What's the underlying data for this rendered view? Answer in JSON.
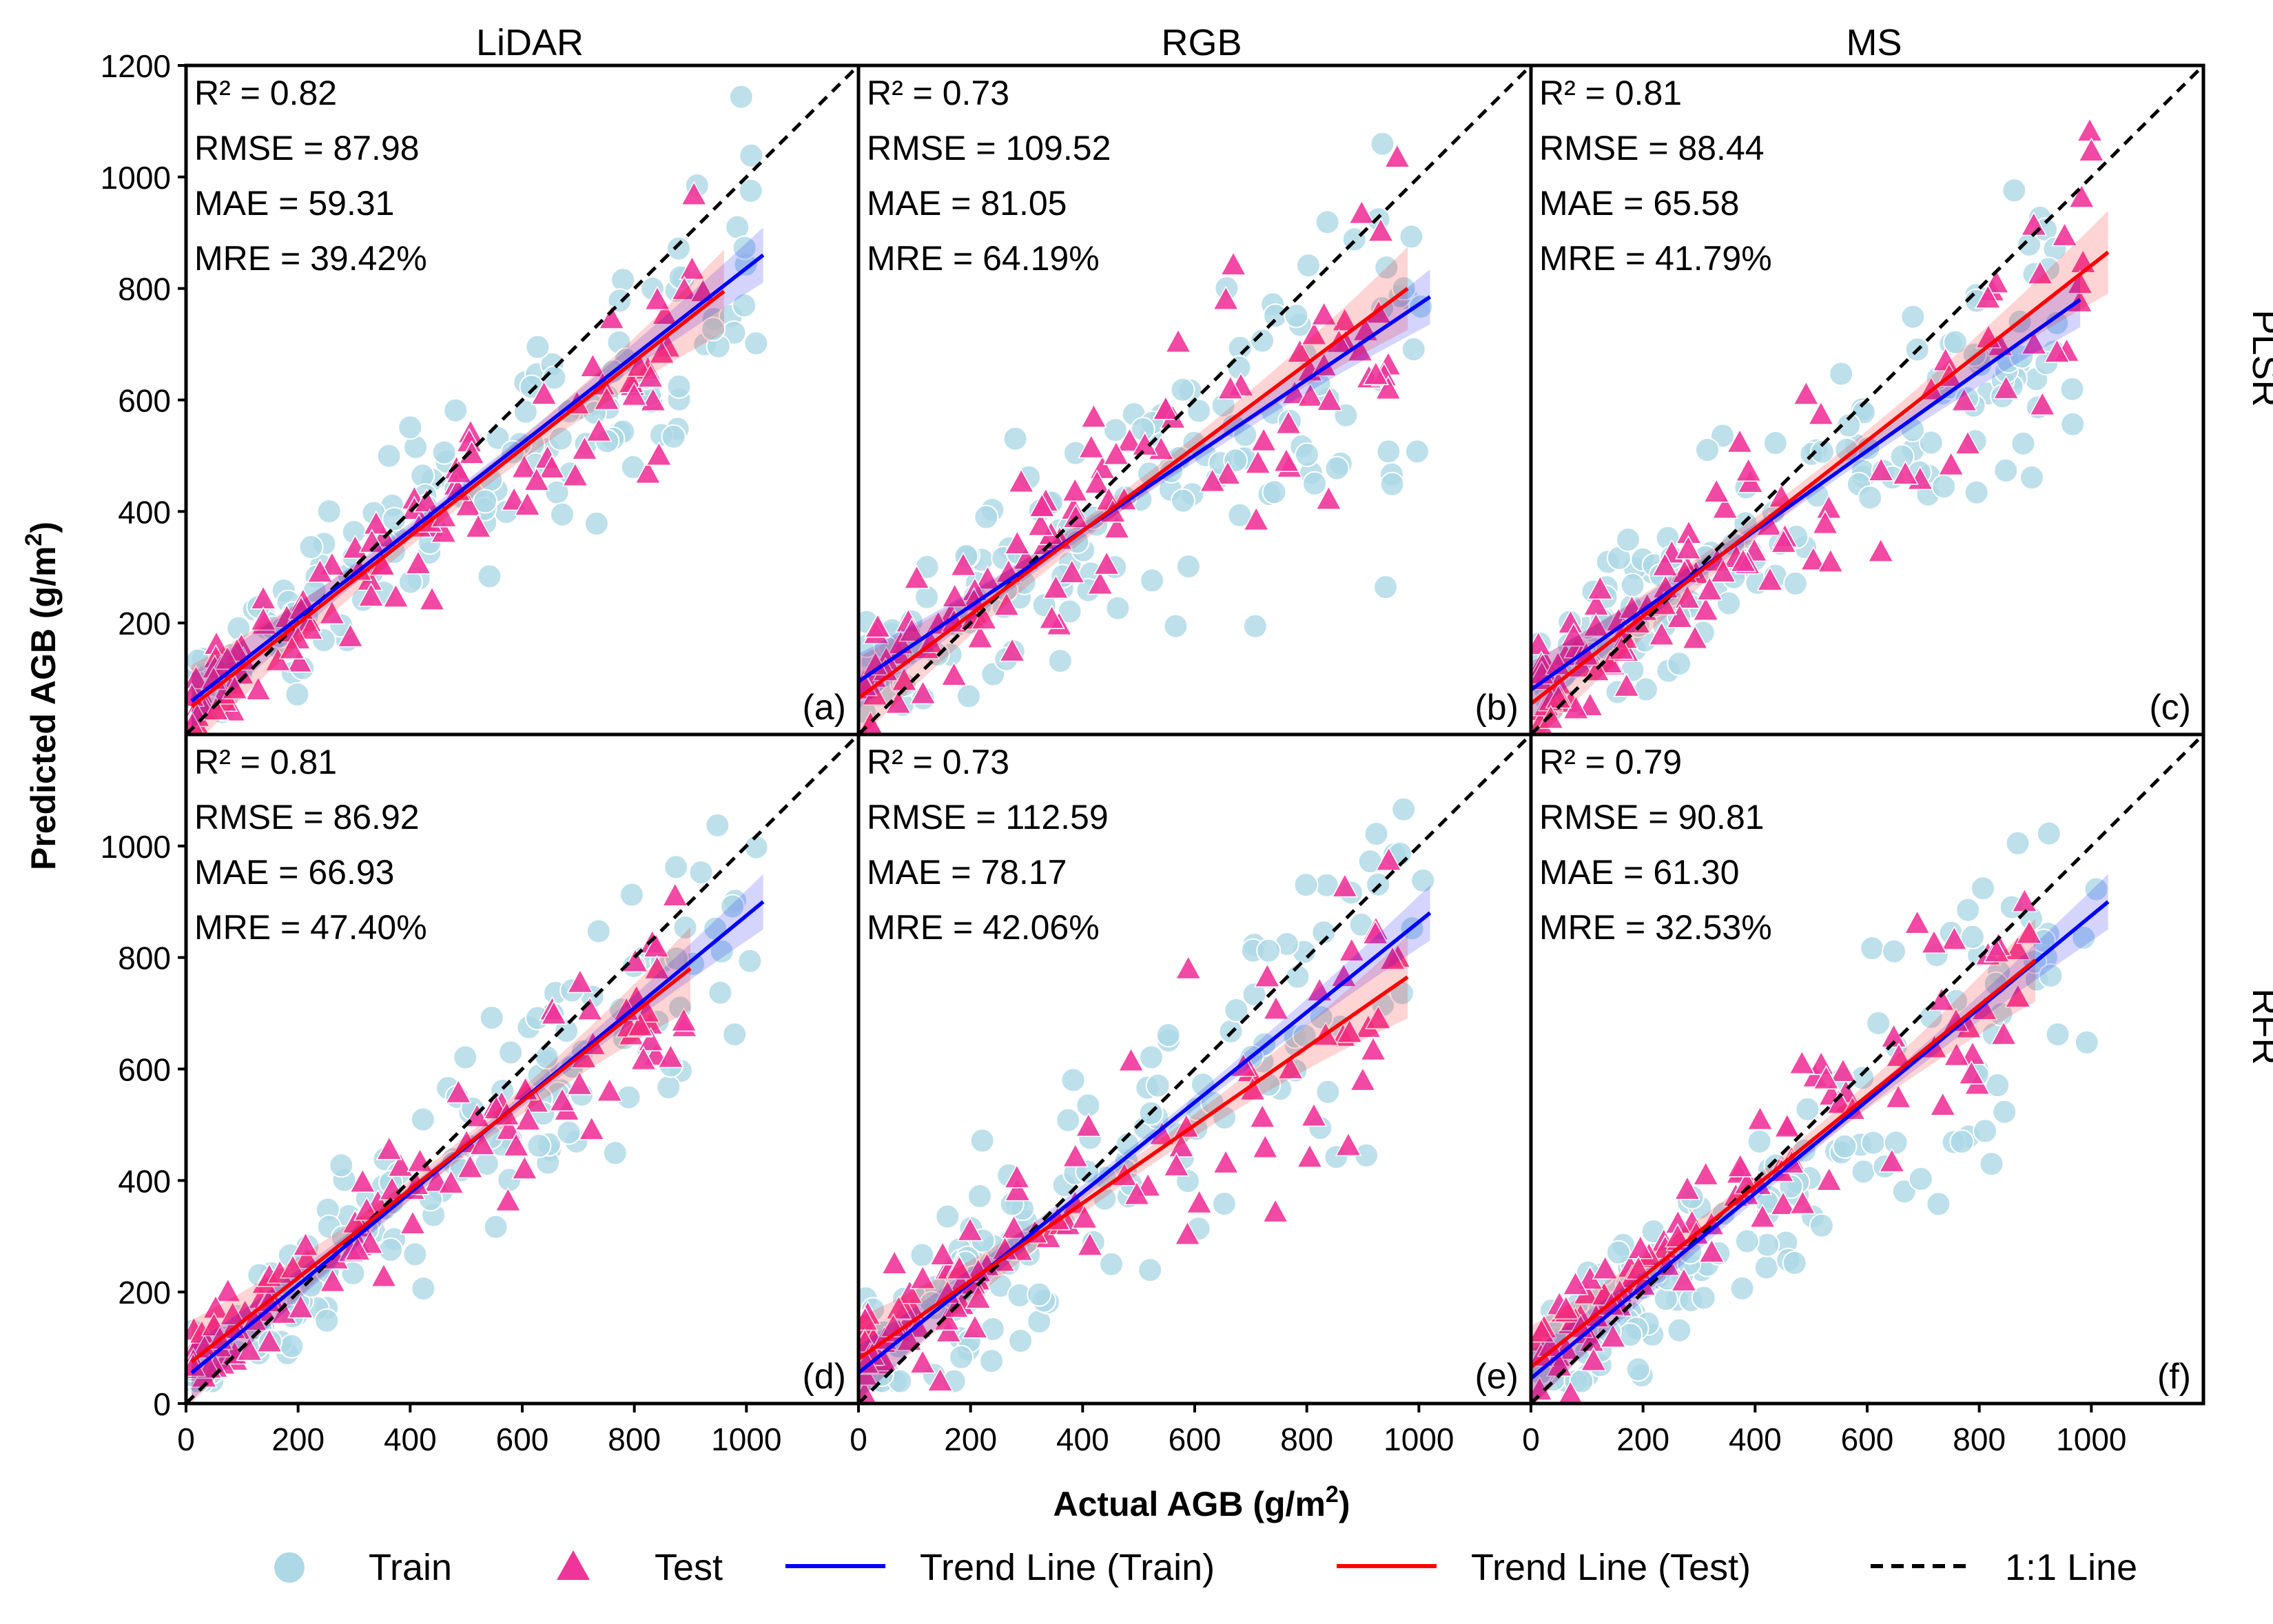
{
  "figure": {
    "x_axis_label": "Actual AGB (g/m",
    "y_axis_label": "Predicted AGB (g/m",
    "unit_superscript": "2",
    "column_titles": [
      "LiDAR",
      "RGB",
      "MS"
    ],
    "row_titles": [
      "PLSR",
      "RFR"
    ],
    "x_ticks": [
      0,
      200,
      400,
      600,
      800,
      1000
    ],
    "y_ticks_top": [
      200,
      400,
      600,
      800,
      1000,
      1200
    ],
    "y_ticks_bottom": [
      0,
      200,
      400,
      600,
      800,
      1000
    ],
    "legend": [
      {
        "label": "Train",
        "symbol": "circle",
        "color": "#add8e6"
      },
      {
        "label": "Test",
        "symbol": "triangle",
        "color": "#f0359a"
      },
      {
        "label": "Trend Line (Train)",
        "symbol": "line",
        "color": "#0000ff"
      },
      {
        "label": "Trend Line (Test)",
        "symbol": "line",
        "color": "#ff0000"
      },
      {
        "label": "1:1 Line",
        "symbol": "dashed",
        "color": "#000000"
      }
    ],
    "colors": {
      "train": "#add8e6",
      "test": "#f0359a",
      "train_line": "#0000ff",
      "test_line": "#ff0000",
      "identity": "#000000"
    }
  },
  "chart_data": [
    {
      "type": "scatter",
      "panel": "(a)",
      "data_source": "LiDAR",
      "model": "PLSR",
      "metrics": [
        "R²   = 0.82",
        "RMSE = 87.98",
        "MAE  = 59.31",
        "MRE  = 39.42%"
      ],
      "xlim": [
        0,
        1200
      ],
      "ylim": [
        0,
        1200
      ],
      "train_trend": {
        "x": [
          10,
          1030
        ],
        "y": [
          60,
          860
        ]
      },
      "test_trend": {
        "x": [
          10,
          960
        ],
        "y": [
          50,
          795
        ]
      }
    },
    {
      "type": "scatter",
      "panel": "(b)",
      "data_source": "RGB",
      "model": "PLSR",
      "metrics": [
        "R²   = 0.73",
        "RMSE = 109.52",
        "MAE  = 81.05",
        "MRE  = 64.19%"
      ],
      "xlim": [
        0,
        1200
      ],
      "ylim": [
        0,
        1200
      ],
      "train_trend": {
        "x": [
          0,
          1020
        ],
        "y": [
          95,
          785
        ]
      },
      "test_trend": {
        "x": [
          0,
          980
        ],
        "y": [
          65,
          800
        ]
      }
    },
    {
      "type": "scatter",
      "panel": "(c)",
      "data_source": "MS",
      "model": "PLSR",
      "metrics": [
        "R²   = 0.81",
        "RMSE = 88.44",
        "MAE  = 65.58",
        "MRE  = 41.79%"
      ],
      "xlim": [
        0,
        1200
      ],
      "ylim": [
        0,
        1200
      ],
      "train_trend": {
        "x": [
          0,
          980
        ],
        "y": [
          80,
          780
        ]
      },
      "test_trend": {
        "x": [
          0,
          1030
        ],
        "y": [
          55,
          865
        ]
      }
    },
    {
      "type": "scatter",
      "panel": "(d)",
      "data_source": "LiDAR",
      "model": "RFR",
      "metrics": [
        "R²   = 0.81",
        "RMSE = 86.92",
        "MAE  = 66.93",
        "MRE  = 47.40%"
      ],
      "xlim": [
        0,
        1200
      ],
      "ylim": [
        0,
        1200
      ],
      "train_trend": {
        "x": [
          10,
          1030
        ],
        "y": [
          55,
          900
        ]
      },
      "test_trend": {
        "x": [
          10,
          900
        ],
        "y": [
          75,
          780
        ]
      }
    },
    {
      "type": "scatter",
      "panel": "(e)",
      "data_source": "RGB",
      "model": "RFR",
      "metrics": [
        "R²   = 0.73",
        "RMSE = 112.59",
        "MAE  = 78.17",
        "MRE  = 42.06%"
      ],
      "xlim": [
        0,
        1200
      ],
      "ylim": [
        0,
        1200
      ],
      "train_trend": {
        "x": [
          0,
          1020
        ],
        "y": [
          55,
          880
        ]
      },
      "test_trend": {
        "x": [
          0,
          980
        ],
        "y": [
          80,
          765
        ]
      }
    },
    {
      "type": "scatter",
      "panel": "(f)",
      "data_source": "MS",
      "model": "RFR",
      "metrics": [
        "R²   = 0.79",
        "RMSE = 90.81",
        "MAE  = 61.30",
        "MRE  = 32.53%"
      ],
      "xlim": [
        0,
        1200
      ],
      "ylim": [
        0,
        1200
      ],
      "train_trend": {
        "x": [
          0,
          1030
        ],
        "y": [
          45,
          900
        ]
      },
      "test_trend": {
        "x": [
          0,
          900
        ],
        "y": [
          65,
          795
        ]
      }
    }
  ]
}
